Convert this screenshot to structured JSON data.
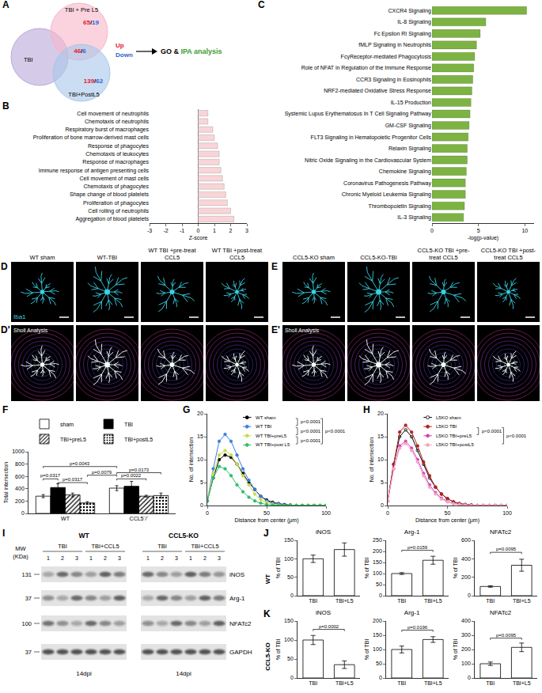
{
  "figure": {
    "A": {
      "panel": "A",
      "sets": [
        {
          "label": "TBI",
          "color": "#b9a8d9"
        },
        {
          "label": "TBI + Pre L5",
          "color": "#f6b5c9"
        },
        {
          "label": "TBI+PostL5",
          "color": "#a9c7ea"
        }
      ],
      "regions": [
        {
          "sets": [
            1
          ],
          "up": 65,
          "down": 19
        },
        {
          "sets": [
            1,
            2
          ],
          "up": 46,
          "down": 6
        },
        {
          "sets": [
            2
          ],
          "up": 139,
          "down": 62
        }
      ],
      "separator": "/",
      "up_label": "Up",
      "down_label": "Down",
      "up_color": "#e0202a",
      "down_color": "#2f5fd0",
      "analysis": [
        {
          "text": "GO &",
          "color": "#000000"
        },
        {
          "text": "IPA analysis",
          "color": "#3f9b2f"
        }
      ]
    },
    "D": {
      "panel": "D",
      "sholl_panel": "D'",
      "stain": "Iba1",
      "sholl_label": "Sholl Analysis",
      "conditions": [
        "WT sham",
        "WT-TBI",
        "WT TBI +pre-treat CCL5",
        "WT TBI +post-treat CCL5"
      ]
    },
    "E": {
      "panel": "E",
      "sholl_panel": "E'",
      "sholl_label": "Sholl Analysis",
      "conditions": [
        "CCL5-KO sham",
        "CCL5-KO-TBI",
        "CCL5-KO TBI +pre-treat CCL5",
        "CCL5-KO TBI +post-treat CCL5"
      ]
    },
    "I": {
      "panel": "I",
      "mw_header": "MW (KDa)",
      "blots": [
        {
          "label": "WT",
          "conditions": [
            {
              "label": "TBI",
              "lanes": [
                1,
                2,
                3
              ]
            },
            {
              "label": "TBI+CCL5",
              "lanes": [
                1,
                2,
                3
              ]
            }
          ],
          "timepoint": "14dpi"
        },
        {
          "label": "CCL5-KO",
          "conditions": [
            {
              "label": "TBI",
              "lanes": [
                1,
                2,
                3
              ]
            },
            {
              "label": "TBI+CCL5",
              "lanes": [
                1,
                2,
                3
              ]
            }
          ],
          "timepoint": "14dpi"
        }
      ],
      "rows": [
        {
          "mw": 131,
          "label": "iNOS"
        },
        {
          "mw": 37,
          "label": "Arg-1"
        },
        {
          "mw": 100,
          "label": "NFATc2"
        },
        {
          "mw": 37,
          "label": "GAPDH"
        }
      ]
    },
    "row_labels": [
      {
        "panel": "J",
        "label": "WT"
      },
      {
        "panel": "K",
        "label": "CCL5-KO"
      }
    ]
  },
  "chart_data": [
    {
      "panel": "B",
      "type": "bar",
      "orientation": "horizontal",
      "xlabel": "Z-score",
      "categories": [
        "Cell movement of neutrophils",
        "Chemotaxis of neutrophils",
        "Respiratory burst of macrophages",
        "Proliferation of bone marrow-derived mast cells",
        "Response of phagocytes",
        "Chemotaxis of leukocytes",
        "Response of macrophages",
        "Immune response of antigen presenting cells",
        "Cell movement of mast cells",
        "Chemotaxis of phagocytes",
        "Shape change of blood platelets",
        "Proliferation of phagocytes",
        "Cell rolling of neutrophils",
        "Aggregation of blood platelets"
      ],
      "values": [
        0.6,
        0.6,
        0.9,
        1.0,
        1.2,
        1.3,
        1.3,
        1.4,
        1.5,
        1.6,
        1.7,
        1.8,
        2.0,
        2.2
      ],
      "color": "#f9d5d8",
      "xlim": [
        -3,
        3
      ],
      "xticks": [
        -3,
        -2,
        -1,
        0,
        1,
        2,
        3
      ]
    },
    {
      "panel": "C",
      "type": "bar",
      "orientation": "horizontal",
      "xlabel": "-log(p-value)",
      "categories": [
        "CXCR4 Signaling",
        "IL-8 Signaling",
        "Fc Epsilon RI Signaling",
        "fMLP Signaling in Neutrophils",
        "FcγReceptor-mediated Phagocytosis",
        "Role of NFAT in Regulation of the Immune Response",
        "CCR3 Signaling in Eosinophils",
        "NRF2-mediated Oxidative Stress Response",
        "IL-15 Production",
        "Systemic Lupus Erythematosus In T Cell Signaling Pathway",
        "GM-CSF Signaling",
        "FLT3 Signaling in Hematopoietic Progenitor Cells",
        "Relaxin Signaling",
        "Nitric Oxide Signaling in the Cardiovascular System",
        "Chemokine Signaling",
        "Coronavirus Pathogenesis Pathway",
        "Chronic Myeloid Leukemia Signaling",
        "Thrombopoietin Signaling",
        "IL-3 Signaling"
      ],
      "values": [
        10.2,
        5.8,
        5.2,
        4.8,
        4.6,
        4.5,
        4.4,
        4.3,
        4.2,
        4.1,
        4.0,
        3.9,
        3.8,
        3.8,
        3.7,
        3.6,
        3.6,
        3.5,
        3.4
      ],
      "color": "#7cb342",
      "xlim": [
        0,
        11
      ],
      "xticks": [
        0,
        5,
        10
      ]
    },
    {
      "panel": "F",
      "type": "bar",
      "ylabel": "Total intersection",
      "categories": [
        "WT",
        "CCL5⁻/⁻"
      ],
      "ylim": [
        0,
        1000
      ],
      "yticks": [
        0,
        200,
        400,
        600,
        800,
        1000
      ],
      "legend": "top",
      "series": [
        {
          "name": "sham",
          "color": "#ffffff",
          "marker": "plain",
          "values": [
            280,
            410
          ],
          "errors": [
            25,
            40
          ]
        },
        {
          "name": "TBI",
          "color": "#000000",
          "marker": "plain",
          "values": [
            420,
            440
          ],
          "errors": [
            60,
            80
          ]
        },
        {
          "name": "TBI+preL5",
          "color": "#ffffff",
          "marker": "hatched",
          "values": [
            300,
            280
          ],
          "errors": [
            30,
            15
          ]
        },
        {
          "name": "TBI+postL5",
          "color": "#ffffff",
          "marker": "dotted",
          "values": [
            170,
            290
          ],
          "errors": [
            20,
            40
          ]
        }
      ],
      "comparisons": [
        {
          "from": [
            0,
            0
          ],
          "to": [
            0,
            1
          ],
          "y": 560,
          "label": "p=0.0317"
        },
        {
          "from": [
            0,
            1
          ],
          "to": [
            0,
            3
          ],
          "y": 500,
          "label": "p=0.0317"
        },
        {
          "from": [
            0,
            3
          ],
          "to": [
            1,
            0
          ],
          "y": 620,
          "label": "p=0.0079"
        },
        {
          "from": [
            0,
            0
          ],
          "to": [
            1,
            0
          ],
          "y": 760,
          "label": "p=0.0043"
        },
        {
          "from": [
            1,
            0
          ],
          "to": [
            1,
            2
          ],
          "y": 560,
          "label": "p=0.0022"
        },
        {
          "from": [
            1,
            0
          ],
          "to": [
            1,
            3
          ],
          "y": 660,
          "label": "p=0.0173"
        }
      ]
    },
    {
      "panel": "G",
      "type": "line",
      "marker": "circle",
      "xlabel": "Distance from center (μm)",
      "ylabel": "No. of intersection",
      "x": [
        0,
        5,
        10,
        15,
        20,
        25,
        30,
        35,
        40,
        45,
        50,
        55,
        60,
        65,
        70,
        75,
        80,
        85,
        90,
        95,
        100
      ],
      "xlim": [
        0,
        100
      ],
      "xticks": [
        0,
        50,
        100
      ],
      "ylim": [
        0,
        20
      ],
      "yticks": [
        0,
        5,
        10,
        15,
        20
      ],
      "legend": "top right",
      "series": [
        {
          "name": "WT sham",
          "color": "#000000",
          "values": [
            1,
            6,
            10,
            11,
            10.5,
            9,
            7,
            5,
            3.5,
            2,
            1.2,
            0.7,
            0.4,
            0.2,
            0.1,
            0,
            0,
            0,
            0,
            0,
            0
          ]
        },
        {
          "name": "WT TBI",
          "color": "#3b7fe0",
          "values": [
            1,
            8,
            14,
            15.5,
            14,
            11,
            8,
            5.5,
            3.5,
            2,
            1,
            0.5,
            0.3,
            0.1,
            0,
            0,
            0,
            0,
            0,
            0,
            0
          ]
        },
        {
          "name": "WT TBI+preL5",
          "color": "#c8dc4a",
          "values": [
            1,
            7,
            11,
            12,
            11,
            9,
            6.5,
            4.5,
            2.5,
            1.3,
            0.7,
            0.3,
            0.1,
            0,
            0,
            0,
            0,
            0,
            0,
            0,
            0
          ]
        },
        {
          "name": "WT TBI+post L5",
          "color": "#2ebf6a",
          "values": [
            1,
            6,
            8.5,
            8,
            6.5,
            4.5,
            3,
            1.8,
            1,
            0.5,
            0.2,
            0.1,
            0,
            0,
            0,
            0,
            0,
            0,
            0,
            0,
            0
          ]
        }
      ],
      "comparisons": [
        {
          "from": 0,
          "to": 1,
          "label": "p<0.0001"
        },
        {
          "from": 1,
          "to": 2,
          "label": "p<0.0001"
        },
        {
          "from": 2,
          "to": 3,
          "label": "p<0.0001"
        },
        {
          "from": 0,
          "to": 3,
          "label": "p<0.0001"
        }
      ]
    },
    {
      "panel": "H",
      "type": "line",
      "marker": "circle",
      "xlabel": "Distance from center (μm)",
      "ylabel": "No. of intersection",
      "x": [
        0,
        5,
        10,
        15,
        20,
        25,
        30,
        35,
        40,
        45,
        50,
        55,
        60,
        65,
        70,
        75,
        80,
        85,
        90,
        95,
        100
      ],
      "xlim": [
        0,
        100
      ],
      "xticks": [
        0,
        50,
        100
      ],
      "ylim": [
        0,
        20
      ],
      "yticks": [
        0,
        5,
        10,
        15,
        20
      ],
      "legend": "top right",
      "series": [
        {
          "name": "L5KO sham",
          "color": "#000000",
          "marker": "circle-open",
          "values": [
            1,
            9,
            15,
            16.5,
            15,
            12,
            9,
            6,
            4,
            2.5,
            1.5,
            0.8,
            0.4,
            0.2,
            0.1,
            0,
            0,
            0,
            0,
            0,
            0
          ]
        },
        {
          "name": "L5KO TBI",
          "color": "#b22222",
          "values": [
            1,
            9,
            16,
            17.5,
            16,
            13,
            9.5,
            6.5,
            4,
            2.5,
            1.5,
            0.8,
            0.4,
            0.2,
            0.1,
            0,
            0,
            0,
            0,
            0,
            0
          ]
        },
        {
          "name": "L5KO TBI+preL5",
          "color": "#d63fc0",
          "values": [
            1,
            8,
            13,
            14,
            12.5,
            10,
            7,
            4.5,
            2.8,
            1.6,
            0.9,
            0.4,
            0.2,
            0.1,
            0,
            0,
            0,
            0,
            0,
            0,
            0
          ]
        },
        {
          "name": "L5KO TBI+postL5",
          "color": "#f4a6c0",
          "values": [
            1,
            8,
            12.5,
            13.5,
            12,
            9.5,
            6.5,
            4,
            2.5,
            1.4,
            0.8,
            0.4,
            0.2,
            0.1,
            0,
            0,
            0,
            0,
            0,
            0,
            0
          ]
        }
      ],
      "comparisons": [
        {
          "from": 1,
          "to": 2,
          "label": "p<0.0001"
        },
        {
          "from": 1,
          "to": 3,
          "label": "p<0.0001"
        }
      ]
    },
    {
      "panel": "J",
      "type": "bar",
      "title": "iNOS",
      "ylabel": "% of TBI",
      "categories": [
        "TBI",
        "TBI+L5"
      ],
      "values": [
        100,
        125
      ],
      "errors": [
        10,
        18
      ],
      "color": "#ffffff",
      "ylim": [
        0,
        150
      ],
      "yticks": [
        0,
        50,
        100,
        150
      ]
    },
    {
      "panel": "J",
      "type": "bar",
      "title": "Arg-1",
      "ylabel": "% of TBI",
      "categories": [
        "TBI",
        "TBI+L5"
      ],
      "values": [
        100,
        160
      ],
      "errors": [
        4,
        18
      ],
      "color": "#ffffff",
      "ylim": [
        0,
        250
      ],
      "yticks": [
        0,
        50,
        100,
        150,
        200,
        250
      ],
      "comparisons": [
        {
          "from": 0,
          "to": 1,
          "y": 205,
          "label": "p=0.0159"
        }
      ]
    },
    {
      "panel": "J",
      "type": "bar",
      "title": "NFATc2",
      "ylabel": "% of TBI",
      "categories": [
        "TBI",
        "TBI+L5"
      ],
      "values": [
        100,
        330
      ],
      "errors": [
        8,
        65
      ],
      "color": "#ffffff",
      "ylim": [
        0,
        600
      ],
      "yticks": [
        0,
        200,
        400,
        600
      ],
      "comparisons": [
        {
          "from": 0,
          "to": 1,
          "y": 470,
          "label": "p=0.0095"
        }
      ]
    },
    {
      "panel": "K",
      "type": "bar",
      "title": "iNOS",
      "ylabel": "% of TBI",
      "categories": [
        "TBI",
        "TBI+L5"
      ],
      "values": [
        100,
        35
      ],
      "errors": [
        12,
        10
      ],
      "color": "#ffffff",
      "ylim": [
        0,
        150
      ],
      "yticks": [
        0,
        50,
        100,
        150
      ],
      "comparisons": [
        {
          "from": 0,
          "to": 1,
          "y": 128,
          "label": "p=0.0002"
        }
      ]
    },
    {
      "panel": "K",
      "type": "bar",
      "title": "Arg-1",
      "ylabel": "% of TBI",
      "categories": [
        "TBI",
        "TBI+L5"
      ],
      "values": [
        100,
        135
      ],
      "errors": [
        12,
        10
      ],
      "color": "#ffffff",
      "ylim": [
        0,
        200
      ],
      "yticks": [
        0,
        50,
        100,
        150,
        200
      ],
      "comparisons": [
        {
          "from": 0,
          "to": 1,
          "y": 168,
          "label": "p=0.0196"
        }
      ]
    },
    {
      "panel": "K",
      "type": "bar",
      "title": "NFATc2",
      "ylabel": "% of TBI",
      "categories": [
        "TBI",
        "TBI+L5"
      ],
      "values": [
        100,
        215
      ],
      "errors": [
        12,
        30
      ],
      "color": "#ffffff",
      "ylim": [
        0,
        400
      ],
      "yticks": [
        0,
        100,
        200,
        300,
        400
      ],
      "comparisons": [
        {
          "from": 0,
          "to": 1,
          "y": 280,
          "label": "p=0.0095"
        }
      ]
    }
  ]
}
